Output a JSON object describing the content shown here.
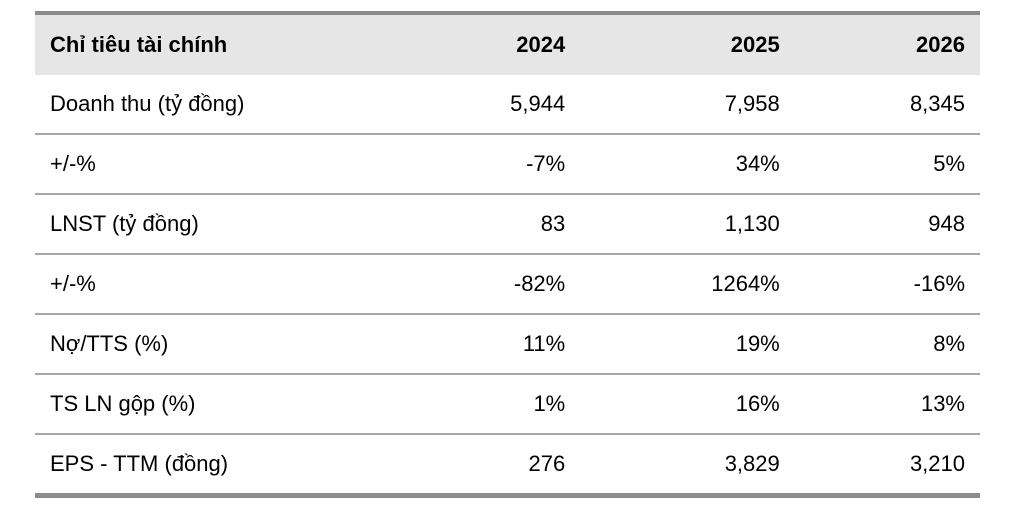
{
  "table": {
    "header": [
      "Chỉ tiêu tài chính",
      "2024",
      "2025",
      "2026"
    ],
    "rows": [
      [
        "Doanh thu (tỷ đồng)",
        "5,944",
        "7,958",
        "8,345"
      ],
      [
        "+/-%",
        "-7%",
        "34%",
        "5%"
      ],
      [
        "LNST (tỷ đồng)",
        "83",
        "1,130",
        "948"
      ],
      [
        "+/-%",
        "-82%",
        "1264%",
        "-16%"
      ],
      [
        "Nợ/TTS (%)",
        "11%",
        "19%",
        "8%"
      ],
      [
        "TS LN gộp (%)",
        "1%",
        "16%",
        "13%"
      ],
      [
        "EPS - TTM (đồng)",
        "276",
        "3,829",
        "3,210"
      ]
    ]
  }
}
